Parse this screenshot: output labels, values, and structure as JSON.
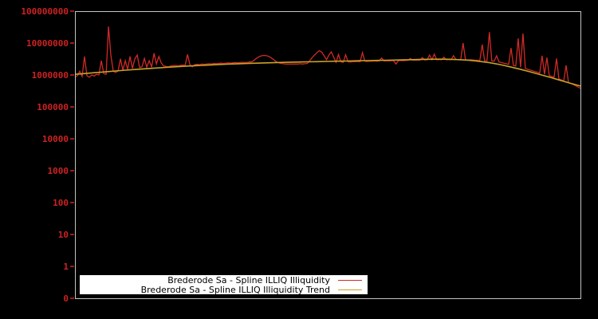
{
  "colors": {
    "background": "#000000",
    "frame": "#c4c4c4",
    "axis_text": "#cc2222",
    "tick_mark": "#cc2222",
    "series_red": "#d02a26",
    "series_trend": "#c9a227",
    "legend_bg": "#ffffff",
    "legend_text": "#000000"
  },
  "chart_data": {
    "type": "line",
    "title": "",
    "xlabel": "",
    "ylabel": "",
    "y_scale": "log",
    "grid": false,
    "legend_position": "bottom-inside",
    "yaxis": {
      "ticks": [
        {
          "label": "100000000",
          "value": 100000000
        },
        {
          "label": "10000000",
          "value": 10000000
        },
        {
          "label": "1000000",
          "value": 1000000
        },
        {
          "label": "100000",
          "value": 100000
        },
        {
          "label": "10000",
          "value": 10000
        },
        {
          "label": "1000",
          "value": 1000
        },
        {
          "label": "100",
          "value": 100
        },
        {
          "label": "10",
          "value": 10
        },
        {
          "label": "1",
          "value": 1
        },
        {
          "label": "0",
          "value": 0
        }
      ]
    },
    "xaxis": {
      "ticks": []
    },
    "series": [
      {
        "name": "Brederode Sa - Spline ILLIQ Illiquidity",
        "color": "#d02a26",
        "stroke_width": 1.3,
        "unit": "millions",
        "values_millions": [
          0.85,
          0.95,
          1.3,
          0.9,
          3.8,
          0.95,
          0.85,
          1.0,
          0.92,
          1.05,
          1.0,
          2.8,
          1.1,
          1.05,
          33.0,
          4.0,
          1.3,
          1.2,
          1.35,
          3.2,
          1.4,
          2.8,
          1.5,
          3.8,
          1.6,
          3.2,
          4.2,
          1.7,
          1.8,
          3.3,
          1.75,
          2.8,
          1.8,
          4.8,
          2.2,
          3.8,
          2.4,
          1.9,
          1.85,
          1.8,
          1.9,
          1.95,
          2.0,
          1.9,
          2.0,
          2.05,
          2.0,
          4.4,
          2.1,
          1.8,
          2.1,
          2.15,
          2.1,
          2.2,
          2.15,
          2.2,
          2.25,
          2.2,
          2.3,
          2.25,
          2.3,
          2.35,
          2.3,
          2.35,
          2.4,
          2.35,
          2.4,
          2.45,
          2.4,
          2.45,
          2.5,
          2.45,
          2.5,
          2.55,
          2.6,
          3.0,
          3.4,
          3.8,
          4.0,
          4.1,
          4.0,
          3.8,
          3.4,
          3.0,
          2.6,
          2.4,
          2.3,
          2.25,
          2.2,
          2.2,
          2.2,
          2.2,
          2.2,
          2.2,
          2.25,
          2.2,
          2.25,
          2.3,
          2.8,
          3.5,
          4.2,
          5.0,
          5.8,
          5.2,
          4.0,
          3.0,
          4.2,
          5.3,
          3.6,
          2.5,
          4.4,
          2.6,
          2.5,
          4.3,
          2.6,
          2.55,
          2.6,
          2.6,
          2.65,
          2.6,
          5.0,
          2.7,
          2.65,
          2.7,
          2.7,
          2.75,
          2.7,
          2.75,
          3.4,
          2.75,
          2.8,
          2.75,
          2.8,
          2.8,
          2.2,
          2.8,
          2.85,
          2.8,
          2.85,
          2.9,
          3.3,
          2.9,
          2.9,
          2.95,
          2.9,
          3.5,
          2.95,
          3.0,
          4.2,
          3.0,
          4.5,
          3.0,
          3.05,
          3.0,
          3.6,
          3.0,
          3.05,
          3.0,
          4.0,
          3.05,
          3.0,
          3.0,
          10.0,
          3.0,
          2.95,
          3.0,
          2.95,
          2.9,
          2.9,
          2.85,
          9.0,
          2.8,
          2.8,
          22.0,
          2.75,
          2.7,
          4.0,
          2.55,
          2.45,
          2.35,
          2.25,
          2.15,
          7.0,
          2.0,
          1.9,
          14.0,
          1.75,
          20.0,
          1.6,
          1.5,
          1.42,
          1.35,
          1.28,
          1.22,
          1.15,
          4.0,
          1.05,
          3.5,
          0.95,
          0.9,
          0.85,
          3.3,
          0.75,
          0.7,
          0.65,
          2.0,
          0.58,
          0.54,
          0.5,
          0.46,
          0.42,
          0.38
        ]
      },
      {
        "name": "Brederode Sa - Spline ILLIQ Illiquidity Trend",
        "color": "#c9a227",
        "stroke_width": 1.6,
        "unit": "millions",
        "values_millions": [
          1.05,
          1.11,
          1.18,
          1.25,
          1.33,
          1.41,
          1.49,
          1.57,
          1.65,
          1.73,
          1.81,
          1.89,
          1.96,
          2.03,
          2.1,
          2.17,
          2.23,
          2.29,
          2.35,
          2.4,
          2.45,
          2.5,
          2.54,
          2.58,
          2.62,
          2.66,
          2.7,
          2.74,
          2.78,
          2.82,
          2.86,
          2.9,
          2.95,
          3.0,
          3.05,
          3.1,
          3.12,
          3.1,
          3.02,
          2.88,
          2.68,
          2.42,
          2.12,
          1.81,
          1.52,
          1.26,
          1.03,
          0.84,
          0.68,
          0.55,
          0.45
        ]
      }
    ]
  }
}
